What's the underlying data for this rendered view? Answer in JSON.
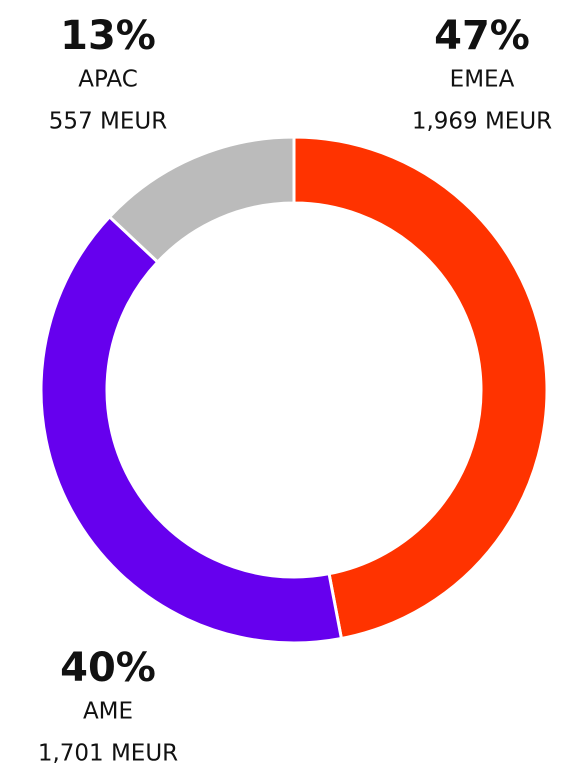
{
  "chart_data": {
    "type": "pie",
    "categories": [
      "EMEA",
      "AME",
      "APAC"
    ],
    "values": [
      47,
      40,
      13
    ],
    "value_labels": [
      "47%",
      "40%",
      "13%"
    ],
    "amounts": [
      1969,
      1701,
      557
    ],
    "amount_labels": [
      "1,969 MEUR",
      "1,701 MEUR",
      "557 MEUR"
    ],
    "colors": [
      "#ff3300",
      "#6600ee",
      "#bbbbbb"
    ],
    "donut": true
  }
}
